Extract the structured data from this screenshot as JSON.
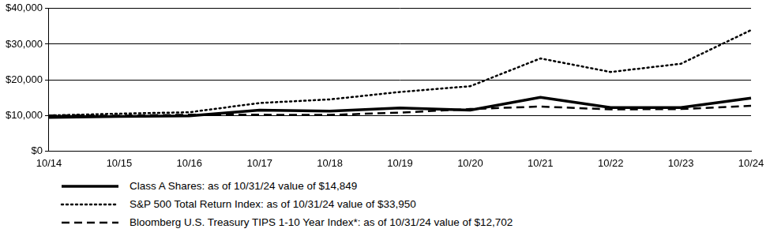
{
  "chart_data": {
    "type": "line",
    "categories": [
      "10/14",
      "10/15",
      "10/16",
      "10/17",
      "10/18",
      "10/19",
      "10/20",
      "10/21",
      "10/22",
      "10/23",
      "10/24"
    ],
    "series": [
      {
        "name": "Class A Shares: as of 10/31/24 value of $14,849",
        "color": "#000000",
        "line_style": "solid",
        "values": [
          9425,
          9700,
          9900,
          11500,
          11200,
          12100,
          11500,
          15100,
          12200,
          12200,
          14849
        ]
      },
      {
        "name": "S&P 500 Total Return Index: as of 10/31/24 value of $33,950",
        "color": "#000000",
        "line_style": "dotted",
        "values": [
          10000,
          10500,
          10900,
          13500,
          14500,
          16600,
          18200,
          26000,
          22200,
          24500,
          33950
        ]
      },
      {
        "name": "Bloomberg U.S. Treasury TIPS 1-10 Year Index*: as of 10/31/24 value of $12,702",
        "color": "#000000",
        "line_style": "dashed",
        "values": [
          10000,
          9950,
          10200,
          10200,
          10150,
          10800,
          11800,
          12500,
          11700,
          11800,
          12702
        ]
      }
    ],
    "ylim": [
      0,
      40000
    ],
    "yticks": [
      {
        "value": 0,
        "label": "$0"
      },
      {
        "value": 10000,
        "label": "$10,000"
      },
      {
        "value": 20000,
        "label": "$20,000"
      },
      {
        "value": 30000,
        "label": "$30,000"
      },
      {
        "value": 40000,
        "label": "$40,000"
      }
    ],
    "grid": true,
    "legend": "bottom"
  }
}
